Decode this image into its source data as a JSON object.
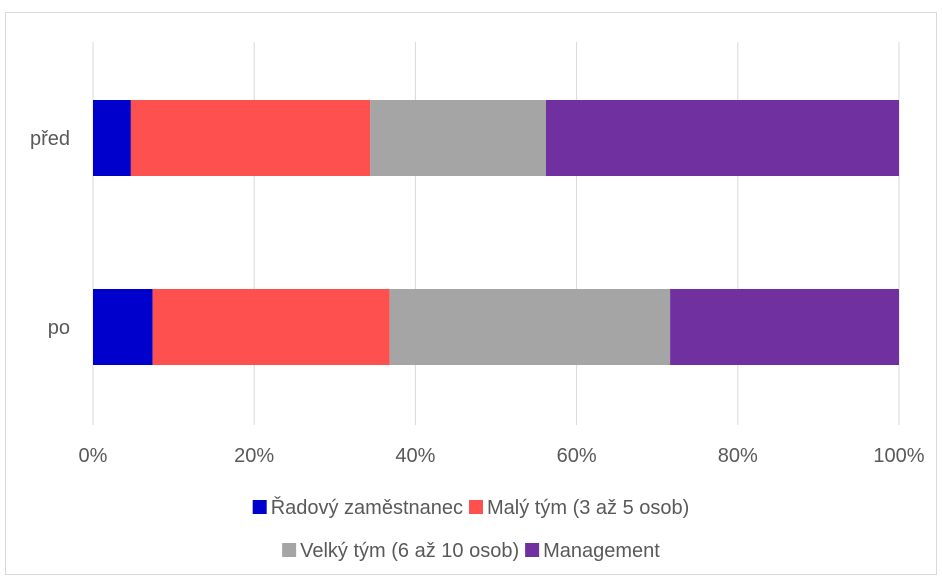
{
  "chart_data": {
    "type": "bar",
    "orientation": "horizontal",
    "stacked": "percent",
    "categories": [
      "před",
      "po"
    ],
    "series": [
      {
        "name": "Řadový zaměstnanec",
        "color": "#0000CC",
        "values": [
          4.7,
          7.4
        ]
      },
      {
        "name": "Malý tým (3 až 5 osob)",
        "color": "#FF5050",
        "values": [
          29.7,
          29.4
        ]
      },
      {
        "name": "Velký tým (6 až 10 osob)",
        "color": "#A5A5A5",
        "values": [
          21.8,
          34.8
        ]
      },
      {
        "name": "Management",
        "color": "#7030A0",
        "values": [
          43.8,
          28.4
        ]
      }
    ],
    "xlim": [
      0,
      100
    ],
    "xticks": [
      "0%",
      "20%",
      "40%",
      "60%",
      "80%",
      "100%"
    ],
    "grid": true,
    "legend_position": "bottom"
  }
}
